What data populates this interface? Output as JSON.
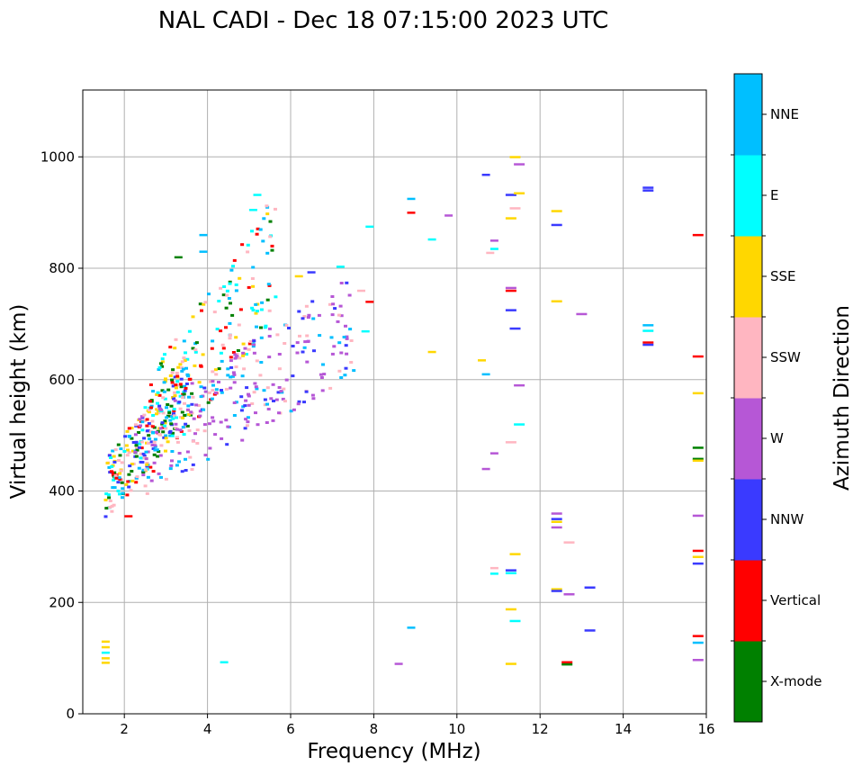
{
  "chart_data": {
    "type": "scatter",
    "title": "NAL CADI - Dec 18 07:15:00 2023 UTC",
    "xlabel": "Frequency (MHz)",
    "ylabel": "Virtual height (km)",
    "xlim": [
      1,
      16
    ],
    "ylim": [
      0,
      1120
    ],
    "xticks": [
      2,
      4,
      6,
      8,
      10,
      12,
      14,
      16
    ],
    "yticks": [
      0,
      200,
      400,
      600,
      800,
      1000
    ],
    "grid": true,
    "colorbar": {
      "label": "Azimuth Direction",
      "categories": [
        {
          "name": "X-mode",
          "color": "#008000"
        },
        {
          "name": "Vertical",
          "color": "#ff0000"
        },
        {
          "name": "NNW",
          "color": "#3a3aff"
        },
        {
          "name": "W",
          "color": "#b657d6"
        },
        {
          "name": "SSW",
          "color": "#ffb6c1"
        },
        {
          "name": "SSE",
          "color": "#ffd700"
        },
        {
          "name": "E",
          "color": "#00ffff"
        },
        {
          "name": "NNE",
          "color": "#00bfff"
        }
      ]
    },
    "clusters": [
      {
        "name": "low-frequency trace (Vertical/SSW/SSE/E)",
        "f_range": [
          1.5,
          3.5
        ],
        "h_range": [
          350,
          660
        ],
        "colors": [
          "#ff0000",
          "#ffb6c1",
          "#ffd700",
          "#00ffff",
          "#00bfff",
          "#008000",
          "#3a3aff"
        ],
        "count": 260
      },
      {
        "name": "mid trace E/NNE",
        "f_range": [
          2.5,
          5.6
        ],
        "h_range": [
          420,
          940
        ],
        "colors": [
          "#00ffff",
          "#00bfff",
          "#ffb6c1",
          "#ffd700",
          "#008000",
          "#ff0000"
        ],
        "count": 170
      },
      {
        "name": "W/NNW echoes",
        "f_range": [
          2.2,
          7.5
        ],
        "h_range": [
          380,
          800
        ],
        "colors": [
          "#b657d6",
          "#b657d6",
          "#3a3aff",
          "#00bfff",
          "#ffb6c1"
        ],
        "count": 260
      }
    ],
    "points": [
      {
        "f": 1.55,
        "h": 130,
        "dir": "SSE"
      },
      {
        "f": 1.55,
        "h": 120,
        "dir": "SSE"
      },
      {
        "f": 1.55,
        "h": 110,
        "dir": "E"
      },
      {
        "f": 1.55,
        "h": 100,
        "dir": "SSE"
      },
      {
        "f": 1.55,
        "h": 92,
        "dir": "SSE"
      },
      {
        "f": 4.4,
        "h": 93,
        "dir": "E"
      },
      {
        "f": 7.9,
        "h": 740,
        "dir": "Vertical"
      },
      {
        "f": 7.8,
        "h": 687,
        "dir": "E"
      },
      {
        "f": 7.9,
        "h": 875,
        "dir": "E"
      },
      {
        "f": 7.7,
        "h": 760,
        "dir": "SSW"
      },
      {
        "f": 8.6,
        "h": 90,
        "dir": "W"
      },
      {
        "f": 8.9,
        "h": 155,
        "dir": "NNE"
      },
      {
        "f": 8.9,
        "h": 925,
        "dir": "NNE"
      },
      {
        "f": 8.9,
        "h": 900,
        "dir": "Vertical"
      },
      {
        "f": 9.4,
        "h": 852,
        "dir": "E"
      },
      {
        "f": 9.4,
        "h": 650,
        "dir": "SSE"
      },
      {
        "f": 9.8,
        "h": 895,
        "dir": "W"
      },
      {
        "f": 10.6,
        "h": 635,
        "dir": "SSE"
      },
      {
        "f": 10.7,
        "h": 610,
        "dir": "NNE"
      },
      {
        "f": 10.7,
        "h": 968,
        "dir": "NNW"
      },
      {
        "f": 10.7,
        "h": 440,
        "dir": "W"
      },
      {
        "f": 10.9,
        "h": 468,
        "dir": "W"
      },
      {
        "f": 10.9,
        "h": 262,
        "dir": "SSW"
      },
      {
        "f": 10.9,
        "h": 252,
        "dir": "E"
      },
      {
        "f": 10.9,
        "h": 835,
        "dir": "E"
      },
      {
        "f": 10.9,
        "h": 850,
        "dir": "W"
      },
      {
        "f": 10.8,
        "h": 828,
        "dir": "SSW"
      },
      {
        "f": 11.3,
        "h": 765,
        "dir": "W"
      },
      {
        "f": 11.3,
        "h": 760,
        "dir": "Vertical"
      },
      {
        "f": 11.3,
        "h": 725,
        "dir": "NNW"
      },
      {
        "f": 11.3,
        "h": 488,
        "dir": "SSW"
      },
      {
        "f": 11.3,
        "h": 258,
        "dir": "NNW"
      },
      {
        "f": 11.3,
        "h": 253,
        "dir": "E"
      },
      {
        "f": 11.3,
        "h": 188,
        "dir": "SSE"
      },
      {
        "f": 11.3,
        "h": 90,
        "dir": "SSE"
      },
      {
        "f": 11.3,
        "h": 890,
        "dir": "SSE"
      },
      {
        "f": 11.3,
        "h": 932,
        "dir": "NNW"
      },
      {
        "f": 11.4,
        "h": 692,
        "dir": "NNW"
      },
      {
        "f": 11.4,
        "h": 287,
        "dir": "SSE"
      },
      {
        "f": 11.4,
        "h": 167,
        "dir": "E"
      },
      {
        "f": 11.4,
        "h": 908,
        "dir": "SSW"
      },
      {
        "f": 11.4,
        "h": 1000,
        "dir": "SSE"
      },
      {
        "f": 11.5,
        "h": 935,
        "dir": "SSE"
      },
      {
        "f": 11.5,
        "h": 987,
        "dir": "W"
      },
      {
        "f": 11.5,
        "h": 590,
        "dir": "W"
      },
      {
        "f": 11.5,
        "h": 520,
        "dir": "E"
      },
      {
        "f": 12.4,
        "h": 903,
        "dir": "SSE"
      },
      {
        "f": 12.4,
        "h": 878,
        "dir": "NNW"
      },
      {
        "f": 12.4,
        "h": 741,
        "dir": "SSE"
      },
      {
        "f": 12.4,
        "h": 360,
        "dir": "W"
      },
      {
        "f": 12.4,
        "h": 350,
        "dir": "NNW"
      },
      {
        "f": 12.4,
        "h": 345,
        "dir": "SSE"
      },
      {
        "f": 12.4,
        "h": 335,
        "dir": "W"
      },
      {
        "f": 12.4,
        "h": 224,
        "dir": "SSE"
      },
      {
        "f": 12.4,
        "h": 221,
        "dir": "NNW"
      },
      {
        "f": 12.7,
        "h": 308,
        "dir": "SSW"
      },
      {
        "f": 12.7,
        "h": 215,
        "dir": "W"
      },
      {
        "f": 12.65,
        "h": 93,
        "dir": "Vertical"
      },
      {
        "f": 12.65,
        "h": 89,
        "dir": "X-mode"
      },
      {
        "f": 13.0,
        "h": 718,
        "dir": "W"
      },
      {
        "f": 13.2,
        "h": 227,
        "dir": "NNW"
      },
      {
        "f": 13.2,
        "h": 150,
        "dir": "NNW"
      },
      {
        "f": 14.6,
        "h": 945,
        "dir": "NNW"
      },
      {
        "f": 14.6,
        "h": 940,
        "dir": "NNW"
      },
      {
        "f": 14.6,
        "h": 698,
        "dir": "NNE"
      },
      {
        "f": 14.6,
        "h": 688,
        "dir": "E"
      },
      {
        "f": 14.6,
        "h": 667,
        "dir": "Vertical"
      },
      {
        "f": 14.6,
        "h": 663,
        "dir": "NNW"
      },
      {
        "f": 15.8,
        "h": 860,
        "dir": "Vertical"
      },
      {
        "f": 15.8,
        "h": 642,
        "dir": "Vertical"
      },
      {
        "f": 15.8,
        "h": 576,
        "dir": "SSE"
      },
      {
        "f": 15.8,
        "h": 478,
        "dir": "X-mode"
      },
      {
        "f": 15.8,
        "h": 458,
        "dir": "X-mode"
      },
      {
        "f": 15.8,
        "h": 455,
        "dir": "SSE"
      },
      {
        "f": 15.8,
        "h": 356,
        "dir": "W"
      },
      {
        "f": 15.8,
        "h": 293,
        "dir": "Vertical"
      },
      {
        "f": 15.8,
        "h": 282,
        "dir": "SSE"
      },
      {
        "f": 15.8,
        "h": 270,
        "dir": "NNW"
      },
      {
        "f": 15.8,
        "h": 140,
        "dir": "Vertical"
      },
      {
        "f": 15.8,
        "h": 128,
        "dir": "NNE"
      },
      {
        "f": 15.8,
        "h": 97,
        "dir": "W"
      },
      {
        "f": 2.1,
        "h": 355,
        "dir": "Vertical"
      },
      {
        "f": 3.3,
        "h": 820,
        "dir": "X-mode"
      },
      {
        "f": 3.9,
        "h": 860,
        "dir": "NNE"
      },
      {
        "f": 3.9,
        "h": 830,
        "dir": "NNE"
      },
      {
        "f": 5.2,
        "h": 932,
        "dir": "E"
      },
      {
        "f": 5.1,
        "h": 905,
        "dir": "E"
      },
      {
        "f": 6.5,
        "h": 793,
        "dir": "NNW"
      },
      {
        "f": 6.2,
        "h": 786,
        "dir": "SSE"
      },
      {
        "f": 7.2,
        "h": 803,
        "dir": "E"
      }
    ]
  }
}
